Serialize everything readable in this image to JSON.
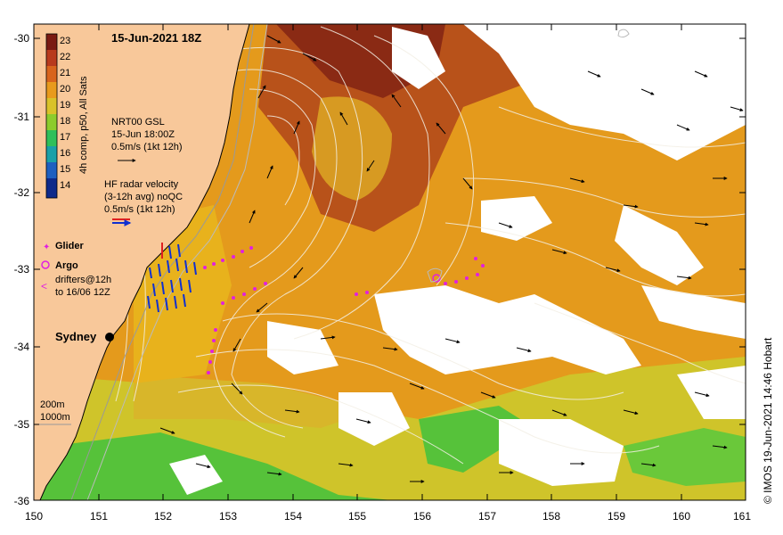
{
  "map": {
    "date_title": "15-Jun-2021 18Z",
    "credit": "© IMOS 19-Jun-2021 14:46 Hobart",
    "lat_ticks": [
      "-30",
      "-31",
      "-32",
      "-33",
      "-34",
      "-35",
      "-36"
    ],
    "lon_ticks": [
      "150",
      "151",
      "152",
      "153",
      "154",
      "155",
      "156",
      "157",
      "158",
      "159",
      "160",
      "161"
    ],
    "colorbar": {
      "label": "4h comp, p50, All Sats",
      "values": [
        "23",
        "22",
        "21",
        "20",
        "19",
        "18",
        "17",
        "16",
        "15",
        "14"
      ],
      "colors": [
        "#7a1a12",
        "#b83a1c",
        "#d8641c",
        "#e89a1c",
        "#d9c229",
        "#8ccc2c",
        "#2fbf5a",
        "#1aa0a8",
        "#1e5fc0",
        "#0f2a8a"
      ]
    },
    "legend": {
      "gsl_title": "NRT00 GSL",
      "gsl_time": "15-Jun 18:00Z",
      "gsl_scale": "0.5m/s (1kt 12h)",
      "hf_title": "HF radar velocity",
      "hf_sub": "(3-12h avg) noQC",
      "hf_scale": "0.5m/s (1kt 12h)",
      "glider": "Glider",
      "argo": "Argo",
      "drifters_1": "drifters@12h",
      "drifters_2": "to 16/06 12Z"
    },
    "place_sydney": "Sydney",
    "depth_200": "200m",
    "depth_1000": "1000m",
    "colors": {
      "land": "#f8c89a",
      "ocean_base": "#e49a1c",
      "warm_core": "#b8521a",
      "cool": "#56c23a",
      "glider": "#e020e0",
      "hf_radar": "#1030d0"
    }
  }
}
